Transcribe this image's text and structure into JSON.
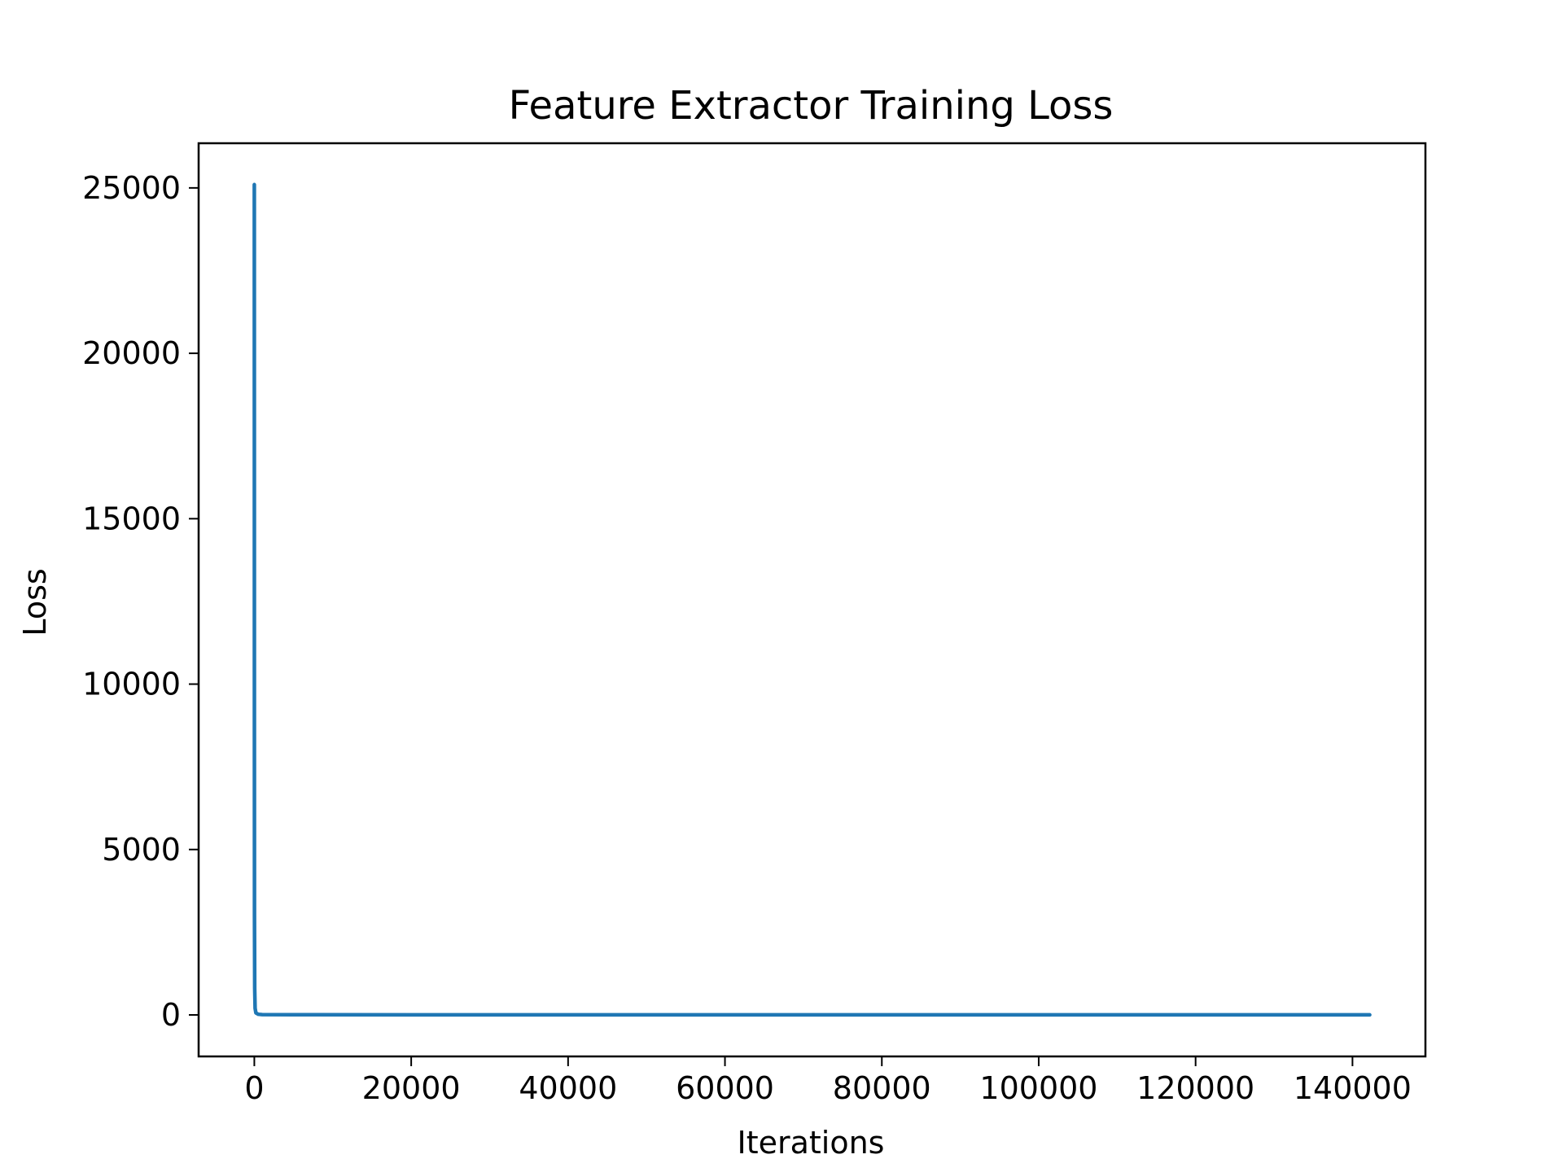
{
  "chart_data": {
    "type": "line",
    "title": "Feature Extractor Training Loss",
    "xlabel": "Iterations",
    "ylabel": "Loss",
    "xlim": [
      -7100,
      149300
    ],
    "ylim": [
      -1255,
      26350
    ],
    "xticks": [
      0,
      20000,
      40000,
      60000,
      80000,
      100000,
      120000,
      140000
    ],
    "xtick_labels": [
      "0",
      "20000",
      "40000",
      "60000",
      "80000",
      "100000",
      "120000",
      "140000"
    ],
    "yticks": [
      0,
      5000,
      10000,
      15000,
      20000,
      25000
    ],
    "ytick_labels": [
      "0",
      "5000",
      "10000",
      "15000",
      "20000",
      "25000"
    ],
    "grid": false,
    "legend": "none",
    "series": [
      {
        "color": "#1f77b4",
        "x": [
          0,
          5,
          10,
          20,
          50,
          100,
          200,
          500,
          1000,
          5000,
          20000,
          60000,
          100000,
          142200
        ],
        "y": [
          25100,
          18000,
          9000,
          3000,
          800,
          200,
          60,
          20,
          10,
          5,
          3,
          2,
          2,
          2
        ]
      }
    ]
  }
}
